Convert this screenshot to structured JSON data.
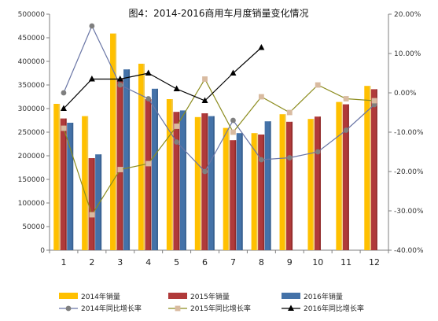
{
  "chart_data": {
    "title": "图4：2014-2016商用车月度销量变化情况",
    "categories": [
      "1",
      "2",
      "3",
      "4",
      "5",
      "6",
      "7",
      "8",
      "9",
      "10",
      "11",
      "12"
    ],
    "y_left": {
      "min": 0,
      "max": 500000,
      "step": 50000
    },
    "y_right": {
      "min": -40,
      "max": 20,
      "step": 10,
      "suffix": ".00%"
    },
    "bar_series": [
      {
        "name": "2014年销量",
        "color": "#FFC000",
        "values": [
          310000,
          284000,
          459000,
          395000,
          320000,
          282000,
          259000,
          248000,
          288000,
          278000,
          314000,
          348000
        ]
      },
      {
        "name": "2015年销量",
        "color": "#B03A3A",
        "values": [
          279000,
          195000,
          363000,
          320000,
          293000,
          290000,
          233000,
          245000,
          272000,
          283000,
          309000,
          341000
        ]
      },
      {
        "name": "2016年销量",
        "color": "#4472A8",
        "values": [
          270000,
          203000,
          383000,
          342000,
          296000,
          284000,
          248000,
          273000,
          null,
          null,
          null,
          null
        ]
      }
    ],
    "line_series": [
      {
        "name": "2014年同比增长率",
        "color": "#6A76A6",
        "marker": "circle",
        "marker_color": "#7F7F7F",
        "values": [
          0.0,
          17.0,
          2.0,
          -1.5,
          -12.5,
          -20.0,
          -7.0,
          -17.0,
          -16.5,
          -15.0,
          -9.5,
          -3.0
        ]
      },
      {
        "name": "2015年同比增长率",
        "color": "#8C8C1E",
        "marker": "square",
        "marker_color": "#D9BBA0",
        "values": [
          -9.0,
          -31.0,
          -19.5,
          -18.0,
          -8.5,
          3.5,
          -10.0,
          -1.0,
          -5.0,
          2.0,
          -1.5,
          -2.0
        ]
      },
      {
        "name": "2016年同比增长率",
        "color": "#000000",
        "marker": "triangle",
        "marker_color": "#000000",
        "values": [
          -4.0,
          3.5,
          3.5,
          5.0,
          1.0,
          -2.0,
          5.0,
          11.5,
          null,
          null,
          null,
          null
        ]
      }
    ]
  }
}
